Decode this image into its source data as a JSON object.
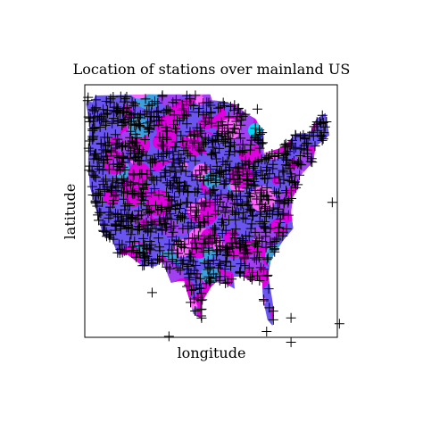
{
  "chart_data": {
    "type": "scatter",
    "title": "Location of stations over mainland US",
    "xlabel": "longitude",
    "ylabel": "latitude",
    "xlim": [
      -125,
      -65
    ],
    "ylim": [
      24,
      50
    ],
    "grid": false,
    "legend": "none",
    "marker": "+",
    "marker_color": "#000000",
    "background_fill_colors": [
      "#e000e0",
      "#6a55f0",
      "#a040f0",
      "#ff66ff",
      "#3aa0e0",
      "#00d8f0"
    ],
    "stations_sample": [
      {
        "x": -124.2,
        "y": 48.7
      },
      {
        "x": -122.4,
        "y": 47.6
      },
      {
        "x": -123.1,
        "y": 44.5
      },
      {
        "x": -124.0,
        "y": 41.2
      },
      {
        "x": -122.4,
        "y": 37.8
      },
      {
        "x": -121.9,
        "y": 36.6
      },
      {
        "x": -119.8,
        "y": 34.4
      },
      {
        "x": -118.2,
        "y": 34.1
      },
      {
        "x": -117.2,
        "y": 32.7
      },
      {
        "x": -115.6,
        "y": 32.9
      },
      {
        "x": -114.6,
        "y": 35.2
      },
      {
        "x": -112.1,
        "y": 33.4
      },
      {
        "x": -110.9,
        "y": 32.2
      },
      {
        "x": -106.5,
        "y": 31.8
      },
      {
        "x": -106.6,
        "y": 35.1
      },
      {
        "x": -104.8,
        "y": 39.7
      },
      {
        "x": -111.9,
        "y": 40.8
      },
      {
        "x": -116.2,
        "y": 43.6
      },
      {
        "x": -117.4,
        "y": 47.7
      },
      {
        "x": -108.5,
        "y": 45.8
      },
      {
        "x": -104.7,
        "y": 41.1
      },
      {
        "x": -100.8,
        "y": 46.8
      },
      {
        "x": -96.8,
        "y": 46.9
      },
      {
        "x": -93.3,
        "y": 45.0
      },
      {
        "x": -96.0,
        "y": 41.3
      },
      {
        "x": -97.3,
        "y": 37.7
      },
      {
        "x": -97.5,
        "y": 35.5
      },
      {
        "x": -96.8,
        "y": 32.8
      },
      {
        "x": -98.5,
        "y": 29.4
      },
      {
        "x": -95.4,
        "y": 29.8
      },
      {
        "x": -97.4,
        "y": 27.8
      },
      {
        "x": -90.1,
        "y": 30.0
      },
      {
        "x": -92.3,
        "y": 34.7
      },
      {
        "x": -90.2,
        "y": 38.6
      },
      {
        "x": -87.6,
        "y": 41.9
      },
      {
        "x": -89.4,
        "y": 43.1
      },
      {
        "x": -86.2,
        "y": 39.8
      },
      {
        "x": -83.0,
        "y": 42.3
      },
      {
        "x": -84.5,
        "y": 39.1
      },
      {
        "x": -86.8,
        "y": 36.2
      },
      {
        "x": -86.8,
        "y": 33.5
      },
      {
        "x": -84.4,
        "y": 33.7
      },
      {
        "x": -81.7,
        "y": 30.3
      },
      {
        "x": -82.5,
        "y": 27.9
      },
      {
        "x": -80.2,
        "y": 25.8
      },
      {
        "x": -81.8,
        "y": 24.6
      },
      {
        "x": -80.2,
        "y": 26.7
      },
      {
        "x": -80.9,
        "y": 35.2
      },
      {
        "x": -79.9,
        "y": 32.8
      },
      {
        "x": -78.6,
        "y": 35.8
      },
      {
        "x": -77.0,
        "y": 38.9
      },
      {
        "x": -75.2,
        "y": 39.9
      },
      {
        "x": -74.0,
        "y": 40.7
      },
      {
        "x": -71.1,
        "y": 42.4
      },
      {
        "x": -70.3,
        "y": 43.7
      },
      {
        "x": -68.8,
        "y": 44.8
      },
      {
        "x": -73.8,
        "y": 42.7
      },
      {
        "x": -79.9,
        "y": 40.4
      },
      {
        "x": -81.7,
        "y": 41.5
      },
      {
        "x": -78.9,
        "y": 42.9
      },
      {
        "x": -66.2,
        "y": 37.9
      },
      {
        "x": -64.5,
        "y": 25.4
      },
      {
        "x": -76.0,
        "y": 23.5
      },
      {
        "x": -76.0,
        "y": 26.0
      },
      {
        "x": -105.0,
        "y": 24.1
      },
      {
        "x": -109.0,
        "y": 28.6
      },
      {
        "x": -84.0,
        "y": 47.5
      },
      {
        "x": -90.8,
        "y": 46.7
      },
      {
        "x": -88.0,
        "y": 44.5
      },
      {
        "x": -101.7,
        "y": 35.2
      },
      {
        "x": -100.4,
        "y": 31.5
      },
      {
        "x": -102.1,
        "y": 31.9
      },
      {
        "x": -93.7,
        "y": 32.5
      },
      {
        "x": -88.2,
        "y": 30.7
      },
      {
        "x": -85.7,
        "y": 30.2
      },
      {
        "x": -90.5,
        "y": 41.5
      },
      {
        "x": -93.6,
        "y": 41.6
      },
      {
        "x": -94.6,
        "y": 39.1
      },
      {
        "x": -98.0,
        "y": 43.5
      },
      {
        "x": -103.2,
        "y": 44.1
      },
      {
        "x": -106.3,
        "y": 42.9
      },
      {
        "x": -112.0,
        "y": 46.6
      },
      {
        "x": -114.0,
        "y": 46.9
      },
      {
        "x": -119.7,
        "y": 39.5
      },
      {
        "x": -115.1,
        "y": 36.2
      },
      {
        "x": -120.6,
        "y": 42.2
      },
      {
        "x": -122.7,
        "y": 45.5
      },
      {
        "x": -123.9,
        "y": 46.2
      },
      {
        "x": -121.3,
        "y": 38.6
      },
      {
        "x": -120.5,
        "y": 34.9
      }
    ]
  }
}
